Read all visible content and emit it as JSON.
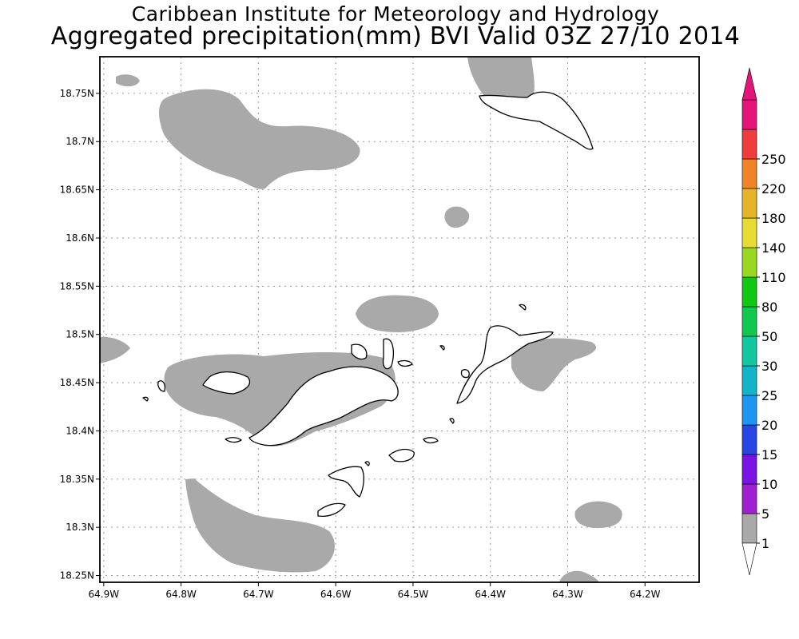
{
  "header": {
    "title_line1": "Caribbean Institute for Meteorology and Hydrology",
    "title_line2": "Aggregated precipitation(mm) BVI Valid 03Z 27/10 2014"
  },
  "map": {
    "lon_ticks": [
      "64.9W",
      "64.8W",
      "64.7W",
      "64.6W",
      "64.5W",
      "64.4W",
      "64.3W",
      "64.2W"
    ],
    "lat_ticks": [
      "18.75N",
      "18.7N",
      "18.65N",
      "18.6N",
      "18.55N",
      "18.5N",
      "18.45N",
      "18.4N",
      "18.35N",
      "18.3N",
      "18.25N"
    ],
    "lon_range": [
      -64.905,
      -64.13
    ],
    "lat_range": [
      18.243,
      18.788
    ],
    "grid": true,
    "precip_fill_color": "#a9a9a9",
    "land_fill_color": "#ffffff"
  },
  "legend": {
    "labels": [
      "1",
      "5",
      "10",
      "15",
      "20",
      "25",
      "30",
      "50",
      "80",
      "110",
      "140",
      "180",
      "220",
      "250"
    ],
    "colors": [
      "#a9a9a9",
      "#a01fd0",
      "#7a14e6",
      "#2846e6",
      "#1c96f0",
      "#12b4c8",
      "#12c8a0",
      "#10c850",
      "#10c810",
      "#98d820",
      "#e6dc32",
      "#e6b428",
      "#f08228",
      "#f03c3c",
      "#e61478"
    ]
  }
}
